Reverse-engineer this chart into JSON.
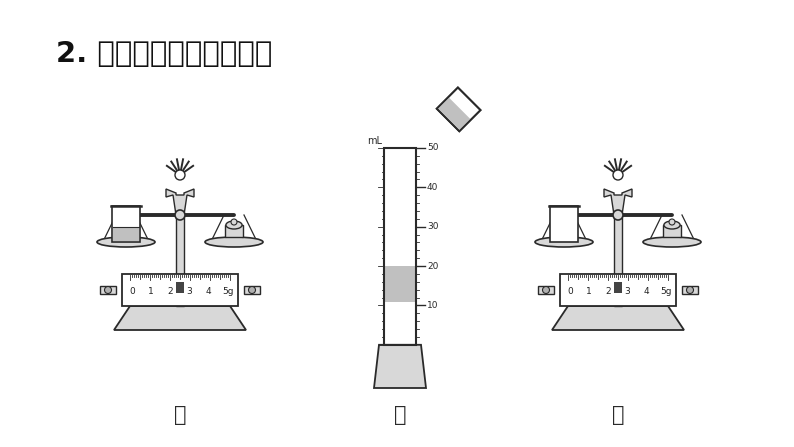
{
  "title": "2. 实验：测量液体的密度",
  "bg_color": "#ffffff",
  "label_jia": "甲",
  "label_yi": "乙",
  "label_bing": "丙",
  "gray_light": "#d8d8d8",
  "gray_mid": "#b0b0b0",
  "outline": "#2a2a2a",
  "liquid": "#c0c0c0",
  "white": "#ffffff"
}
